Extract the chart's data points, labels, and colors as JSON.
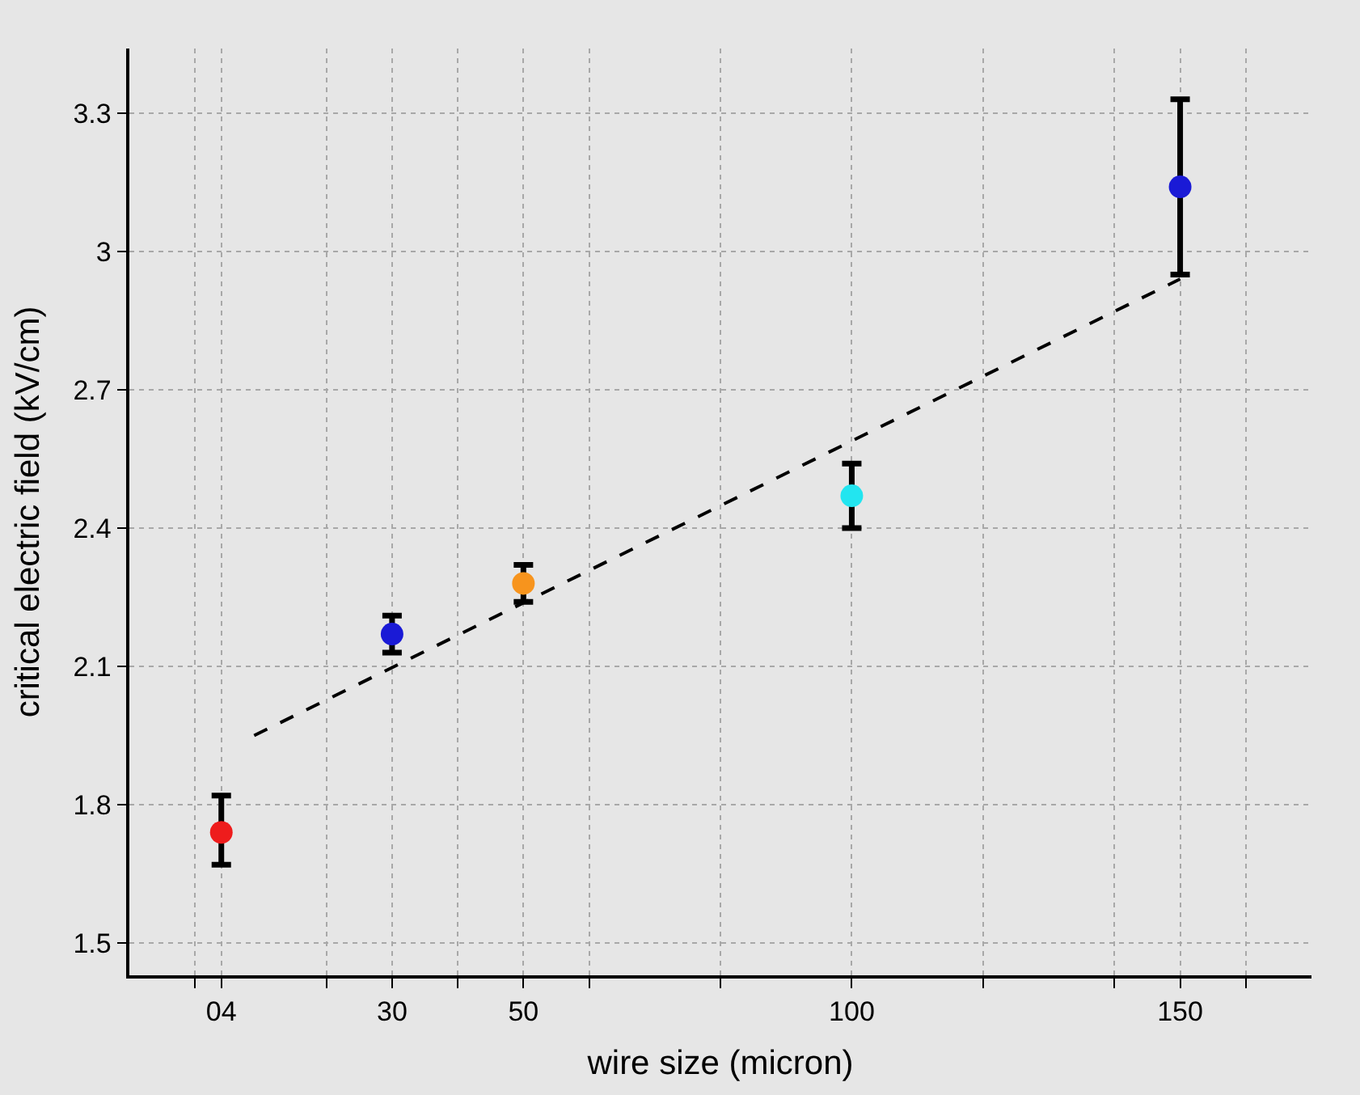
{
  "chart_data": {
    "type": "scatter",
    "xlabel": "wire size (micron)",
    "ylabel": "critical electric field (kV/cm)",
    "x": [
      4,
      30,
      50,
      100,
      150
    ],
    "series": [
      {
        "colors": [
          "#ee1c1c",
          "#1a1ad6",
          "#f7941d",
          "#22e5f0",
          "#1a1ad6"
        ],
        "values": [
          1.74,
          2.17,
          2.28,
          2.47,
          3.14
        ],
        "errors": [
          [
            1.67,
            1.82
          ],
          [
            2.13,
            2.21
          ],
          [
            2.24,
            2.32
          ],
          [
            2.4,
            2.54
          ],
          [
            2.95,
            3.33
          ]
        ],
        "marker": "circle"
      },
      {
        "type": "line",
        "color": "#000000",
        "x": [
          9,
          150
        ],
        "values": [
          1.95,
          2.94
        ],
        "line_style": "dashed",
        "marker": "none"
      }
    ],
    "xlim": [
      -10,
      170
    ],
    "xticks": [
      {
        "value": 0,
        "label": null
      },
      {
        "value": 4,
        "label": "04"
      },
      {
        "value": 20,
        "label": null
      },
      30,
      {
        "value": 40,
        "label": null
      },
      50,
      {
        "value": 60,
        "label": null
      },
      {
        "value": 80,
        "label": null
      },
      100,
      {
        "value": 120,
        "label": null
      },
      {
        "value": 140,
        "label": null
      },
      150,
      {
        "value": 160,
        "label": null
      }
    ],
    "ylim": [
      1.43,
      3.44
    ],
    "yticks": [
      1.5,
      1.8,
      2.1,
      2.4,
      2.7,
      3,
      3.3
    ],
    "grid": true
  }
}
